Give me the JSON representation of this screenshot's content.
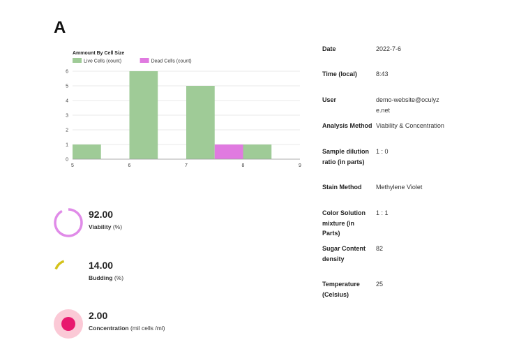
{
  "panel_letter": "A",
  "chart_data": {
    "type": "bar",
    "title": "Ammount By Cell Size",
    "x_ticks": [
      "5",
      "6",
      "7",
      "8",
      "9"
    ],
    "y_ticks": [
      "0",
      "1",
      "2",
      "3",
      "4",
      "5",
      "6"
    ],
    "xlim": [
      5,
      9
    ],
    "ylim": [
      0,
      6
    ],
    "grid": true,
    "legend": "top-left",
    "series": [
      {
        "name": "Live Cells (count)",
        "color": "#9fcb97",
        "bars": [
          {
            "x0": 5.0,
            "x1": 5.5,
            "value": 1
          },
          {
            "x0": 6.0,
            "x1": 6.5,
            "value": 6
          },
          {
            "x0": 7.0,
            "x1": 7.5,
            "value": 5
          },
          {
            "x0": 8.0,
            "x1": 8.5,
            "value": 1
          }
        ]
      },
      {
        "name": "Dead Cells (count)",
        "color": "#e07ae0",
        "bars": [
          {
            "x0": 7.5,
            "x1": 8.0,
            "value": 1
          }
        ]
      }
    ]
  },
  "metrics": [
    {
      "value": "92.00",
      "label_bold": "Viability",
      "label_unit": "(%)",
      "fraction": 0.92,
      "color": "#e08be8",
      "icon": "viability-ring-icon"
    },
    {
      "value": "14.00",
      "label_bold": "Budding",
      "label_unit": "(%)",
      "fraction": 0.14,
      "color": "#d4c21a",
      "icon": "budding-arc-icon"
    },
    {
      "value": "2.00",
      "label_bold": "Concentration",
      "label_unit": "(mil cells /ml)",
      "color": "#e8186e",
      "halo_color": "#fbc9d6",
      "icon": "concentration-dot-icon"
    }
  ],
  "info": [
    {
      "key": "Date",
      "value": "2022-7-6"
    },
    {
      "key": "Time (local)",
      "value": "8:43"
    },
    {
      "key": "User",
      "value": "demo-website@oculyze.net"
    },
    {
      "key": "Analysis Method",
      "value": "Viability & Concentration"
    },
    {
      "key": "Sample dilution ratio (in parts)",
      "value": "1 : 0"
    },
    {
      "key": "Stain Method",
      "value": "Methylene Violet"
    },
    {
      "key": "Color Solution mixture (in Parts)",
      "value": "1 : 1"
    },
    {
      "key": "Sugar Content density",
      "value": "82"
    },
    {
      "key": "Temperature (Celsius)",
      "value": "25"
    }
  ]
}
